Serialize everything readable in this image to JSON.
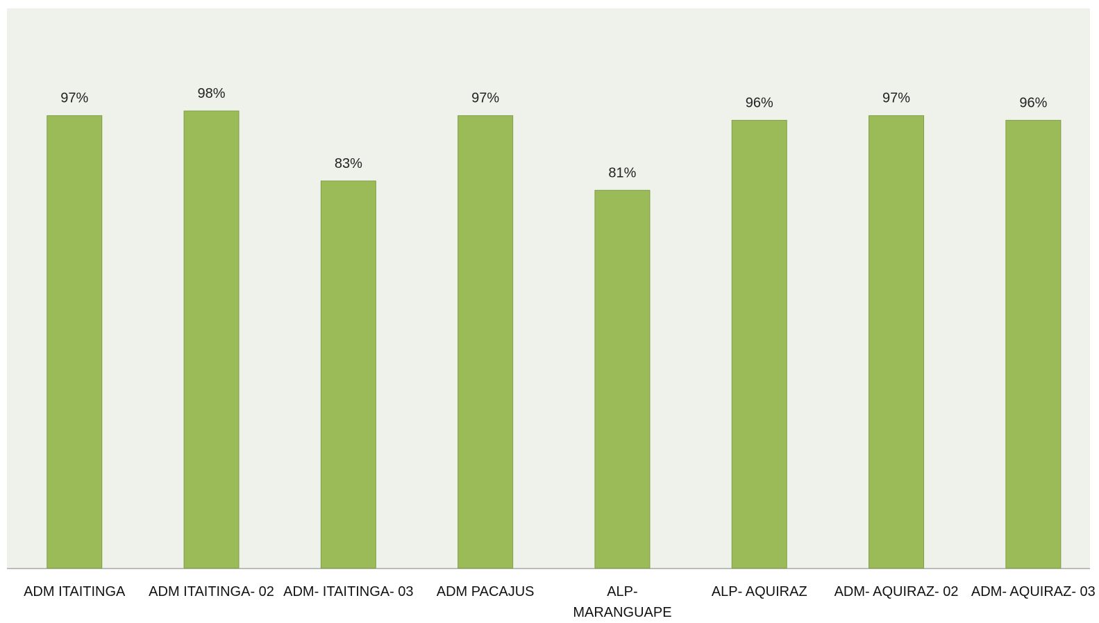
{
  "chart_data": {
    "type": "bar",
    "categories": [
      "ADM ITAITINGA",
      "ADM ITAITINGA- 02",
      "ADM- ITAITINGA- 03",
      "ADM PACAJUS",
      "ALP- MARANGUAPE",
      "ALP- AQUIRAZ",
      "ADM- AQUIRAZ- 02",
      "ADM- AQUIRAZ- 03"
    ],
    "values": [
      97,
      98,
      83,
      97,
      81,
      96,
      97,
      96
    ],
    "value_labels": [
      "97%",
      "98%",
      "83%",
      "97%",
      "81%",
      "96%",
      "97%",
      "96%"
    ],
    "color": "#9bbb59",
    "ylim": [
      0,
      120
    ]
  }
}
